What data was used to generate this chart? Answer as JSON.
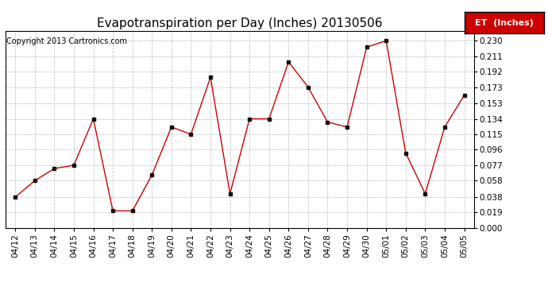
{
  "title": "Evapotranspiration per Day (Inches) 20130506",
  "copyright": "Copyright 2013 Cartronics.com",
  "legend_label": "ET  (Inches)",
  "dates": [
    "04/12",
    "04/13",
    "04/14",
    "04/15",
    "04/16",
    "04/17",
    "04/18",
    "04/19",
    "04/20",
    "04/21",
    "04/22",
    "04/23",
    "04/24",
    "04/25",
    "04/26",
    "04/27",
    "04/28",
    "04/29",
    "04/30",
    "05/01",
    "05/02",
    "05/03",
    "05/04",
    "05/05"
  ],
  "values": [
    0.038,
    0.058,
    0.073,
    0.077,
    0.134,
    0.021,
    0.021,
    0.065,
    0.124,
    0.115,
    0.185,
    0.042,
    0.134,
    0.134,
    0.204,
    0.173,
    0.13,
    0.124,
    0.222,
    0.23,
    0.092,
    0.042,
    0.124,
    0.163
  ],
  "line_color": "#cc0000",
  "marker_color": "#111111",
  "background_color": "#ffffff",
  "grid_color": "#bbbbbb",
  "ylim": [
    0.0,
    0.2415
  ],
  "yticks": [
    0.0,
    0.019,
    0.038,
    0.058,
    0.077,
    0.096,
    0.115,
    0.134,
    0.153,
    0.173,
    0.192,
    0.211,
    0.23
  ],
  "title_fontsize": 11,
  "copyright_fontsize": 7,
  "legend_fontsize": 8,
  "tick_fontsize": 7.5
}
